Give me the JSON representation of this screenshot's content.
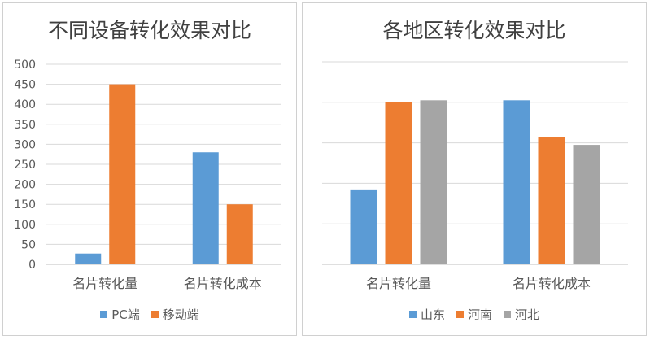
{
  "chart_data": [
    {
      "type": "bar",
      "title": "不同设备转化效果对比",
      "categories": [
        "名片转化量",
        "名片转化成本"
      ],
      "series": [
        {
          "name": "PC端",
          "values": [
            27,
            280
          ],
          "color": "#5b9bd5"
        },
        {
          "name": "移动端",
          "values": [
            450,
            150
          ],
          "color": "#ed7d31"
        }
      ],
      "yticks": [
        "0",
        "50",
        "100",
        "150",
        "200",
        "250",
        "300",
        "350",
        "400",
        "450",
        "500"
      ],
      "ylim": [
        0,
        500
      ],
      "grid": true,
      "legend": "bottom"
    },
    {
      "type": "bar",
      "title": "各地区转化效果对比",
      "categories": [
        "名片转化量",
        "名片转化成本"
      ],
      "series": [
        {
          "name": "山东",
          "values": [
            37,
            81
          ],
          "color": "#5b9bd5"
        },
        {
          "name": "河南",
          "values": [
            80,
            63
          ],
          "color": "#ed7d31"
        },
        {
          "name": "河北",
          "values": [
            81,
            59
          ],
          "color": "#a5a5a5"
        }
      ],
      "ylim": [
        0,
        100
      ],
      "grid": true,
      "legend": "bottom"
    }
  ]
}
